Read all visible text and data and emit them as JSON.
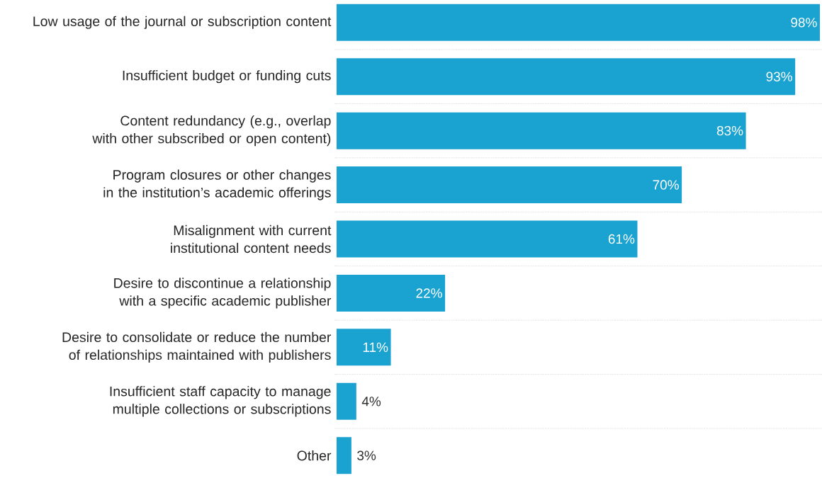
{
  "chart_data": {
    "type": "bar",
    "orientation": "horizontal",
    "categories": [
      "Low usage of the journal or subscription content",
      "Insufficient budget or funding cuts",
      "Content redundancy (e.g., overlap with other subscribed or open content)",
      "Program closures or other changes in the institution’s academic offerings",
      "Misalignment with current institutional content needs",
      "Desire to discontinue a relationship with a specific academic publisher",
      "Desire to consolidate or reduce the number of relationships maintained with publishers",
      "Insufficient staff capacity to manage multiple collections or subscriptions",
      "Other"
    ],
    "values": [
      98,
      93,
      83,
      70,
      61,
      22,
      11,
      4,
      3
    ],
    "value_labels": [
      "98%",
      "93%",
      "83%",
      "70%",
      "61%",
      "22%",
      "11%",
      "4%",
      "3%"
    ],
    "color": "#1aa3d0",
    "grid": "y"
  }
}
